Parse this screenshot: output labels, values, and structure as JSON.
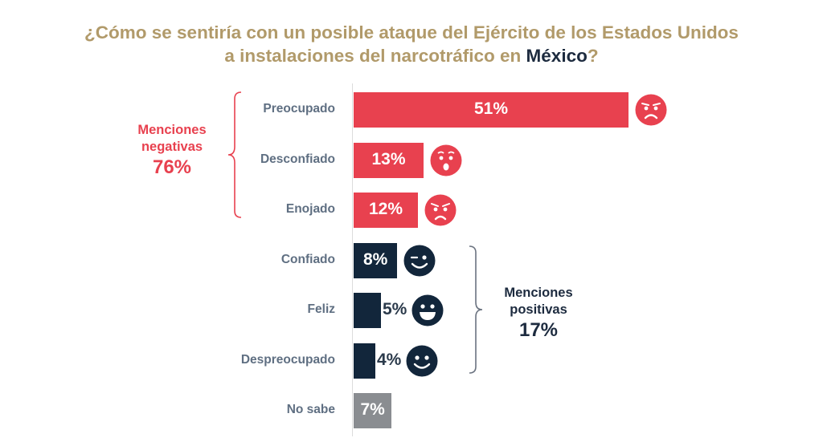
{
  "title": {
    "line1": "¿Cómo se sentiría con un posible ataque del Ejército de los Estados Unidos",
    "line2_prefix": "a instalaciones del narcotráfico en ",
    "line2_emphasis": "México",
    "line2_suffix": "?"
  },
  "colors": {
    "negative": "#e8414f",
    "positive": "#12263b",
    "unknown": "#8a8d91",
    "title": "#b19a6a",
    "category_label": "#5f6f82"
  },
  "groups": {
    "negative": {
      "label_line1": "Menciones",
      "label_line2": "negativas",
      "total": "76%"
    },
    "positive": {
      "label_line1": "Menciones",
      "label_line2": "positivas",
      "total": "17%"
    }
  },
  "chart_data": {
    "type": "bar",
    "orientation": "horizontal",
    "title": "¿Cómo se sentiría con un posible ataque del Ejército de los Estados Unidos a instalaciones del narcotráfico en México?",
    "xlabel": "",
    "ylabel": "",
    "xlim": [
      0,
      51
    ],
    "grid": false,
    "categories": [
      "Preocupado",
      "Desconfiado",
      "Enojado",
      "Confiado",
      "Feliz",
      "Despreocupado",
      "No sabe"
    ],
    "values": [
      51,
      13,
      12,
      8,
      5,
      4,
      7
    ],
    "value_labels": [
      "51%",
      "13%",
      "12%",
      "8%",
      "5%",
      "4%",
      "7%"
    ],
    "group": [
      "negative",
      "negative",
      "negative",
      "positive",
      "positive",
      "positive",
      "unknown"
    ],
    "icons": [
      "worried-face-icon",
      "surprised-face-icon",
      "angry-face-icon",
      "winking-face-icon",
      "grinning-face-icon",
      "smiling-face-icon",
      null
    ],
    "annotations": [
      {
        "text": "Menciones negativas 76%",
        "spans": [
          "Preocupado",
          "Desconfiado",
          "Enojado"
        ]
      },
      {
        "text": "Menciones positivas 17%",
        "spans": [
          "Confiado",
          "Feliz",
          "Despreocupado"
        ]
      }
    ]
  }
}
